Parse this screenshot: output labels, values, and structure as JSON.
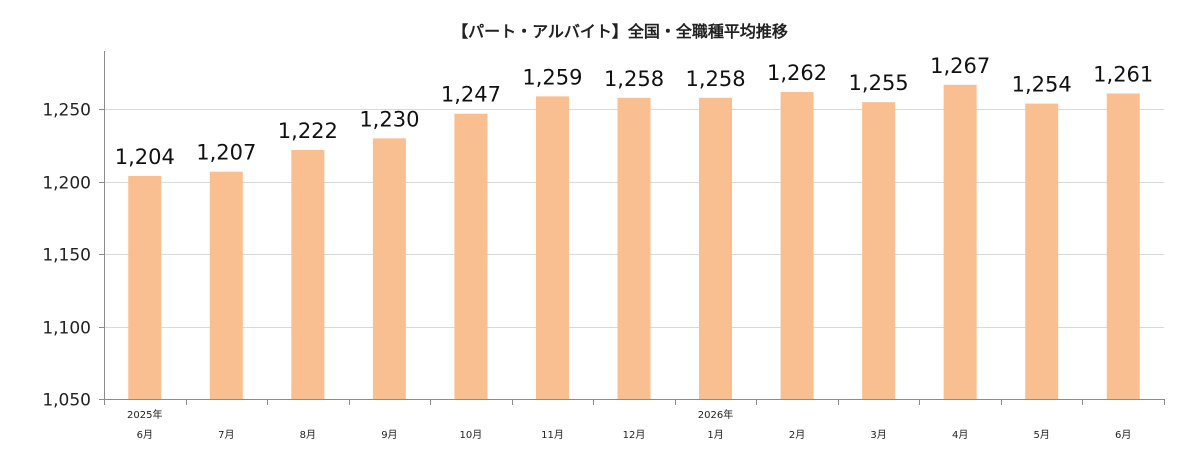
{
  "chart_data": {
    "type": "bar",
    "title": "【パート・アルバイト】全国・全職種平均推移",
    "xlabel": "",
    "ylabel": "",
    "ylim": [
      1050,
      1300
    ],
    "yticks": [
      "1,050",
      "1,100",
      "1,150",
      "1,200",
      "1,250"
    ],
    "ytick_values": [
      1050,
      1100,
      1150,
      1200,
      1250
    ],
    "grid": true,
    "categories": [
      "6月",
      "7月",
      "8月",
      "9月",
      "10月",
      "11月",
      "12月",
      "1月",
      "2月",
      "3月",
      "4月",
      "5月",
      "6月"
    ],
    "year_labels": [
      "2025年",
      "",
      "",
      "",
      "",
      "",
      "",
      "2026年",
      "",
      "",
      "",
      "",
      ""
    ],
    "values": [
      1204,
      1207,
      1222,
      1230,
      1247,
      1259,
      1258,
      1258,
      1262,
      1255,
      1267,
      1254,
      1261
    ],
    "value_labels": [
      "1,204",
      "1,207",
      "1,222",
      "1,230",
      "1,247",
      "1,259",
      "1,258",
      "1,258",
      "1,262",
      "1,255",
      "1,267",
      "1,254",
      "1,261"
    ],
    "bar_color": "#f9bf90",
    "grid_color": "#d9d9d9"
  }
}
